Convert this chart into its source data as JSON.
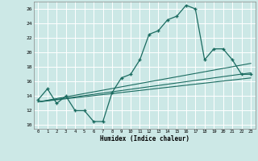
{
  "xlabel": "Humidex (Indice chaleur)",
  "bg_color": "#cce8e6",
  "line_color": "#1a6b60",
  "grid_color": "#ffffff",
  "xlim": [
    -0.5,
    23.5
  ],
  "ylim": [
    9.5,
    27.0
  ],
  "xticks": [
    0,
    1,
    2,
    3,
    4,
    5,
    6,
    7,
    8,
    9,
    10,
    11,
    12,
    13,
    14,
    15,
    16,
    17,
    18,
    19,
    20,
    21,
    22,
    23
  ],
  "yticks": [
    10,
    12,
    14,
    16,
    18,
    20,
    22,
    24,
    26
  ],
  "main_curve_x": [
    0,
    1,
    2,
    3,
    4,
    5,
    6,
    7,
    8,
    9,
    10,
    11,
    12,
    13,
    14,
    15,
    16,
    17,
    18,
    19,
    20,
    21,
    22,
    23
  ],
  "main_curve_y": [
    13.5,
    15.0,
    13.0,
    14.0,
    12.0,
    12.0,
    10.5,
    10.5,
    14.5,
    16.5,
    17.0,
    19.0,
    22.5,
    23.0,
    24.5,
    25.0,
    26.5,
    26.0,
    19.0,
    20.5,
    20.5,
    19.0,
    17.0,
    17.0
  ],
  "line1_x": [
    0,
    23
  ],
  "line1_y": [
    13.2,
    18.5
  ],
  "line2_x": [
    0,
    23
  ],
  "line2_y": [
    13.2,
    17.2
  ],
  "line3_x": [
    0,
    23
  ],
  "line3_y": [
    13.2,
    16.5
  ]
}
